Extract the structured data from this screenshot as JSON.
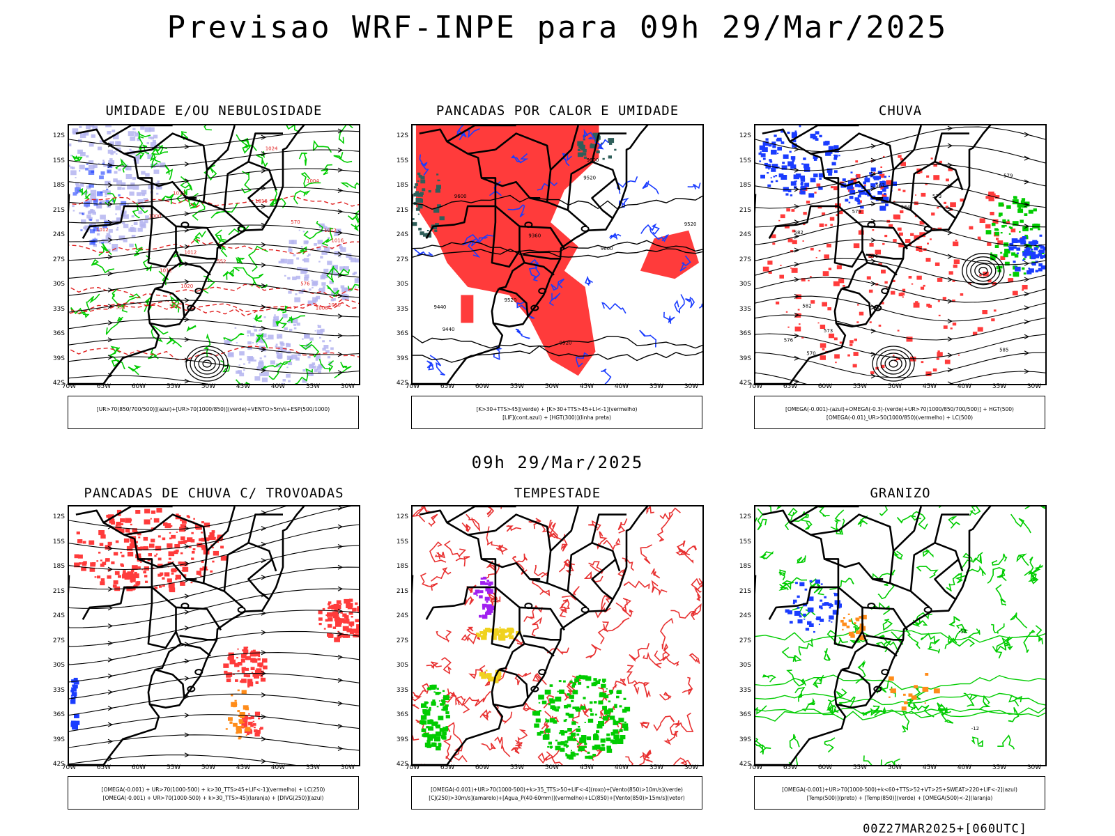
{
  "title": "Previsao WRF-INPE  para 09h 29/Mar/2025",
  "subtitle": "09h 29/Mar/2025",
  "footer": "00Z27MAR2025+[060UTC]",
  "axes": {
    "lat_labels": [
      "12S",
      "15S",
      "18S",
      "21S",
      "24S",
      "27S",
      "30S",
      "33S",
      "36S",
      "39S",
      "42S"
    ],
    "lon_labels": [
      "70W",
      "65W",
      "60W",
      "55W",
      "50W",
      "45W",
      "40W",
      "35W",
      "30W"
    ],
    "lat_range": [
      -42,
      -10
    ],
    "lon_range": [
      -70,
      -28
    ]
  },
  "colors": {
    "red": "#ff3b3b",
    "green": "#00cc00",
    "blue": "#1a3cff",
    "lavender": "#b4b4f0",
    "orange": "#ff8c1a",
    "yellow": "#f0d21e",
    "purple": "#a020f0",
    "teal": "#2f5f5a"
  },
  "panels": [
    {
      "id": "p1",
      "title": "UMIDADE E/OU NEBULOSIDADE",
      "legend": [
        "[UR>70(850/700/500)](azul)+[UR>70(1000/850)](verde)+VENTO>5m/s+ESP(500/1000)"
      ],
      "labels": [
        "1012",
        "1012",
        "1016",
        "1016",
        "1012",
        "1016",
        "1020",
        "1024",
        "1008",
        "1004",
        "1000",
        "576",
        "570",
        "564",
        "558",
        "552",
        "1012",
        "1012"
      ]
    },
    {
      "id": "p2",
      "title": "PANCADAS POR CALOR E UMIDADE",
      "legend": [
        "[K>30+TTS>45](verde) + [K>30+TTS>45+LI<-1](vermelho)",
        "[LIF](cont.azul) + [HGT(300)](linha preta)"
      ],
      "labels": [
        "9600",
        "9520",
        "9520",
        "9600",
        "9520",
        "9440",
        "9360",
        "9520",
        "9440",
        "9600"
      ]
    },
    {
      "id": "p3",
      "title": "CHUVA",
      "legend": [
        "[OMEGA(-0.001)-(azul)+OMEGA(-0.3)-(verde)+UR>70(1000/850/700/500)] + HGT(500)",
        "[OMEGA(-0.01)_UR>50(1000/850)(vermelho) + LC(500)"
      ],
      "labels": [
        "585",
        "582",
        "579",
        "576",
        "573",
        "570",
        "567",
        "564",
        "582",
        "579",
        "576",
        "573"
      ]
    },
    {
      "id": "p4",
      "title": "PANCADAS DE CHUVA C/ TROVOADAS",
      "legend": [
        "[OMEGA(-0.001) + UR>70(1000-500) + k>30_TTS>45+LIF<-1](vermelho) + LC(250)",
        "[OMEGA(-0.001) + UR>70(1000-500) + k>30_TTS>45](laranja) + [DIVG(250)](azul)"
      ],
      "labels": []
    },
    {
      "id": "p5",
      "title": "TEMPESTADE",
      "legend": [
        "[OMEGA(-0.001)+UR>70(1000-500)+k>35_TTS>50+LIF<-4](roxo)+[Vento(850)>10m/s](verde)",
        "[CJ(250)>30m/s](amarelo)+[Agua_P(40-60mm)](vermelho)+LC(850)+[Vento(850)>15m/s](vetor)"
      ],
      "labels": []
    },
    {
      "id": "p6",
      "title": "GRANIZO",
      "legend": [
        "[OMEGA(-0.001)+UR>70(1000-500)+k<60+TTS>52+VT>25+SWEAT>220+LIF<-2](azul)",
        "[Temp(500)](preto) + [Temp(850)](verde) + [OMEGA(500)<-2](laranja)"
      ],
      "labels": [
        "-12",
        "-12"
      ]
    }
  ]
}
